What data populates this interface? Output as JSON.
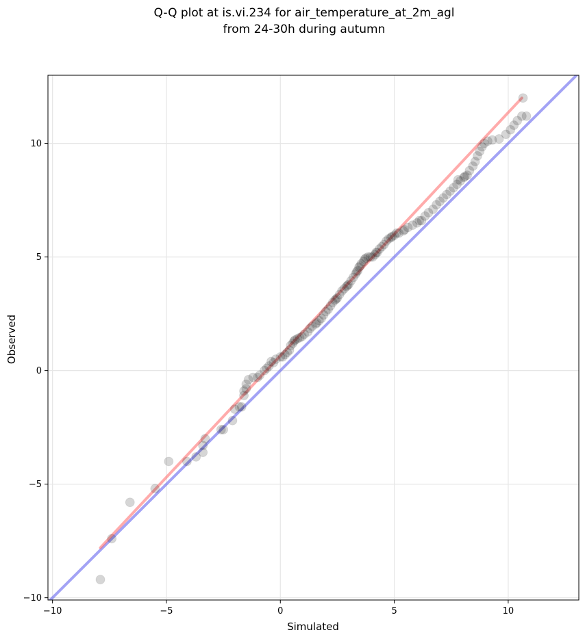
{
  "chart_data": {
    "type": "scatter",
    "title": "Q-Q plot at is.vi.234 for air_temperature_at_2m_agl",
    "subtitle": "from 24-30h during autumn",
    "xlabel": "Simulated",
    "ylabel": "Observed",
    "xlim": [
      -10.2,
      13.1
    ],
    "ylim": [
      -10.1,
      13.0
    ],
    "xticks": [
      -10,
      -5,
      0,
      5,
      10
    ],
    "yticks": [
      -10,
      -5,
      0,
      5,
      10
    ],
    "xtick_labels": [
      "−10",
      "−5",
      "0",
      "5",
      "10"
    ],
    "ytick_labels": [
      "−10",
      "−5",
      "0",
      "5",
      "10"
    ],
    "grid": true,
    "colors": {
      "points": "#000000",
      "fit_line": "#ff6666",
      "identity_line": "#6666ee",
      "grid": "#e6e6e6"
    },
    "identity_line": {
      "from": [
        -10.2,
        -10.2
      ],
      "to": [
        13.1,
        13.1
      ]
    },
    "fit_line": {
      "from": [
        -7.9,
        -7.8
      ],
      "to": [
        10.6,
        12.0
      ]
    },
    "points": [
      [
        -7.9,
        -9.2
      ],
      [
        -7.4,
        -7.4
      ],
      [
        -6.6,
        -5.8
      ],
      [
        -5.5,
        -5.2
      ],
      [
        -4.9,
        -4.0
      ],
      [
        -4.1,
        -4.0
      ],
      [
        -3.7,
        -3.8
      ],
      [
        -3.4,
        -3.6
      ],
      [
        -3.4,
        -3.3
      ],
      [
        -3.3,
        -3.0
      ],
      [
        -2.6,
        -2.6
      ],
      [
        -2.5,
        -2.6
      ],
      [
        -2.1,
        -2.2
      ],
      [
        -2.0,
        -1.7
      ],
      [
        -1.8,
        -1.6
      ],
      [
        -1.7,
        -1.6
      ],
      [
        -1.6,
        -1.1
      ],
      [
        -1.6,
        -0.9
      ],
      [
        -1.5,
        -0.8
      ],
      [
        -1.5,
        -0.6
      ],
      [
        -1.4,
        -0.4
      ],
      [
        -1.2,
        -0.3
      ],
      [
        -1.0,
        -0.3
      ],
      [
        -0.9,
        -0.2
      ],
      [
        -0.7,
        0.0
      ],
      [
        -0.6,
        0.1
      ],
      [
        -0.5,
        0.2
      ],
      [
        -0.4,
        0.4
      ],
      [
        -0.2,
        0.5
      ],
      [
        0.0,
        0.6
      ],
      [
        0.1,
        0.6
      ],
      [
        0.2,
        0.7
      ],
      [
        0.3,
        0.8
      ],
      [
        0.4,
        0.9
      ],
      [
        0.45,
        1.1
      ],
      [
        0.55,
        1.2
      ],
      [
        0.65,
        1.35
      ],
      [
        0.75,
        1.4
      ],
      [
        0.85,
        1.45
      ],
      [
        0.95,
        1.5
      ],
      [
        1.05,
        1.6
      ],
      [
        1.2,
        1.7
      ],
      [
        1.3,
        1.85
      ],
      [
        1.4,
        1.95
      ],
      [
        1.55,
        2.05
      ],
      [
        1.7,
        2.2
      ],
      [
        1.8,
        2.3
      ],
      [
        1.9,
        2.45
      ],
      [
        2.0,
        2.6
      ],
      [
        2.1,
        2.7
      ],
      [
        2.2,
        2.85
      ],
      [
        2.3,
        3.0
      ],
      [
        2.4,
        3.1
      ],
      [
        2.5,
        3.2
      ],
      [
        2.6,
        3.35
      ],
      [
        2.7,
        3.5
      ],
      [
        2.8,
        3.6
      ],
      [
        2.9,
        3.7
      ],
      [
        3.0,
        3.8
      ],
      [
        3.1,
        3.95
      ],
      [
        3.2,
        4.1
      ],
      [
        3.3,
        4.25
      ],
      [
        3.4,
        4.4
      ],
      [
        3.45,
        4.55
      ],
      [
        3.55,
        4.7
      ],
      [
        3.65,
        4.8
      ],
      [
        3.7,
        4.9
      ],
      [
        3.75,
        4.95
      ],
      [
        3.85,
        5.0
      ],
      [
        3.95,
        5.0
      ],
      [
        4.05,
        5.0
      ],
      [
        4.15,
        5.1
      ],
      [
        4.25,
        5.2
      ],
      [
        4.35,
        5.35
      ],
      [
        4.45,
        5.45
      ],
      [
        4.55,
        5.55
      ],
      [
        4.65,
        5.7
      ],
      [
        4.75,
        5.8
      ],
      [
        4.85,
        5.85
      ],
      [
        5.0,
        5.95
      ],
      [
        5.2,
        6.05
      ],
      [
        5.4,
        6.15
      ],
      [
        5.6,
        6.3
      ],
      [
        5.8,
        6.4
      ],
      [
        6.0,
        6.5
      ],
      [
        6.2,
        6.6
      ],
      [
        6.35,
        6.8
      ],
      [
        6.5,
        6.95
      ],
      [
        6.7,
        7.1
      ],
      [
        6.85,
        7.3
      ],
      [
        7.0,
        7.45
      ],
      [
        7.15,
        7.6
      ],
      [
        7.3,
        7.75
      ],
      [
        7.45,
        7.9
      ],
      [
        7.6,
        8.05
      ],
      [
        7.75,
        8.2
      ],
      [
        7.9,
        8.35
      ],
      [
        8.05,
        8.5
      ],
      [
        8.2,
        8.6
      ],
      [
        8.3,
        8.8
      ],
      [
        8.45,
        9.0
      ],
      [
        8.55,
        9.2
      ],
      [
        8.65,
        9.45
      ],
      [
        8.75,
        9.65
      ],
      [
        8.85,
        9.85
      ],
      [
        8.95,
        10.0
      ],
      [
        9.1,
        10.1
      ],
      [
        9.3,
        10.15
      ],
      [
        9.6,
        10.2
      ],
      [
        9.9,
        10.4
      ],
      [
        10.1,
        10.6
      ],
      [
        10.25,
        10.8
      ],
      [
        10.4,
        11.0
      ],
      [
        10.6,
        11.2
      ],
      [
        10.8,
        11.2
      ],
      [
        10.65,
        12.0
      ],
      [
        -0.3,
        0.35
      ],
      [
        1.6,
        2.1
      ],
      [
        2.45,
        3.15
      ],
      [
        3.5,
        4.6
      ],
      [
        4.2,
        5.2
      ],
      [
        5.1,
        6.05
      ],
      [
        6.1,
        6.6
      ],
      [
        7.8,
        8.4
      ],
      [
        2.95,
        3.75
      ],
      [
        0.6,
        1.3
      ],
      [
        5.45,
        6.2
      ],
      [
        8.1,
        8.55
      ],
      [
        3.35,
        4.35
      ],
      [
        4.9,
        5.9
      ]
    ]
  }
}
